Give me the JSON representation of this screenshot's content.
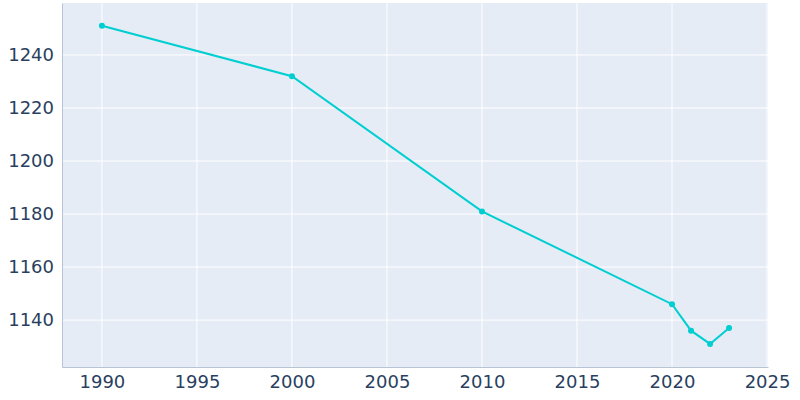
{
  "chart_data": {
    "type": "line",
    "x": [
      1990,
      2000,
      2010,
      2020,
      2021,
      2022,
      2023
    ],
    "values": [
      1251,
      1232,
      1181,
      1146,
      1136,
      1131,
      1137
    ],
    "color": "#00ced1",
    "marker": "circle",
    "xlim": [
      1987.9,
      2025.05
    ],
    "xticks": [
      1990,
      1995,
      2000,
      2005,
      2010,
      2015,
      2020,
      2025
    ],
    "ylim": [
      1122.3,
      1259.6
    ],
    "yticks": [
      1140,
      1160,
      1180,
      1200,
      1220,
      1240
    ],
    "grid": true
  }
}
